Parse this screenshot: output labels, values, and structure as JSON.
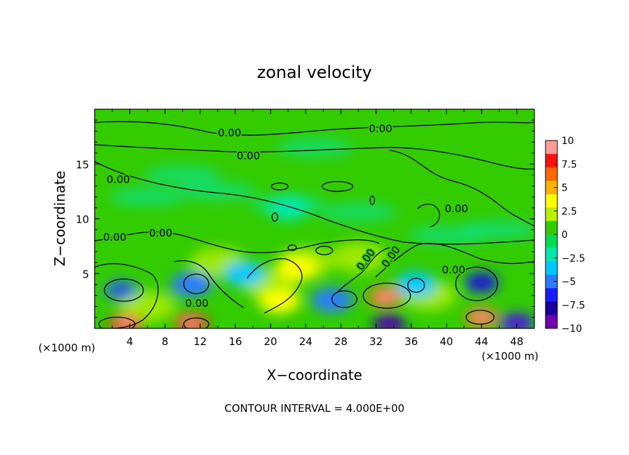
{
  "chart_data": {
    "type": "heatmap",
    "title": "zonal velocity",
    "xlabel": "X−coordinate",
    "ylabel": "Z−coordinate",
    "x_unit_left": "(×1000 m)",
    "x_unit_right": "(×1000 m)",
    "footer": "CONTOUR INTERVAL = 4.000E+00",
    "xlim": [
      0,
      50
    ],
    "ylim": [
      0,
      20
    ],
    "x_ticks": [
      4,
      8,
      12,
      16,
      20,
      24,
      28,
      32,
      36,
      40,
      44,
      48
    ],
    "x_tick_labels": [
      "4",
      "8",
      "12",
      "16",
      "20",
      "24",
      "28",
      "32",
      "36",
      "40",
      "44",
      "48"
    ],
    "y_ticks": [
      5,
      10,
      15
    ],
    "y_tick_labels": [
      "5",
      "10",
      "15"
    ],
    "colorbar": {
      "min": -10,
      "max": 10,
      "ticks": [
        10,
        7.5,
        5,
        2.5,
        0,
        -2.5,
        -5,
        -7.5,
        -10
      ],
      "tick_labels": [
        "10",
        "7.5",
        "5",
        "2.5",
        "0",
        "−2.5",
        "−5",
        "−7.5",
        "−10"
      ],
      "colors": [
        "#ff9a9a",
        "#ff1010",
        "#ff6a00",
        "#ffb300",
        "#ffff00",
        "#b8f000",
        "#33cc00",
        "#00dd55",
        "#00e8b0",
        "#00c8ff",
        "#2a7bff",
        "#1a1aff",
        "#1a00a0",
        "#7000b0"
      ]
    },
    "contour_interval": 4.0,
    "contour_labels": [
      "0.00",
      "0.00",
      "0.00",
      "0.00",
      "0.00",
      "0.00",
      "0.00",
      "0.00",
      "0.00",
      "0.00",
      "0.00"
    ],
    "background_value": 0.5,
    "features": [
      {
        "x": 3.5,
        "z": 0.4,
        "u": 8.5
      },
      {
        "x": 11,
        "z": 0.5,
        "u": 7.5
      },
      {
        "x": 33,
        "z": 2.9,
        "u": 7.0
      },
      {
        "x": 44,
        "z": 1.0,
        "u": 6.5
      },
      {
        "x": 3,
        "z": 3.5,
        "u": -5.5
      },
      {
        "x": 11,
        "z": 4.0,
        "u": -5.0
      },
      {
        "x": 17,
        "z": 5.0,
        "u": -3.5
      },
      {
        "x": 27,
        "z": 2.6,
        "u": -5.0
      },
      {
        "x": 33.5,
        "z": 0.4,
        "u": -8.0
      },
      {
        "x": 36.5,
        "z": 4.0,
        "u": -4.0
      },
      {
        "x": 44,
        "z": 4.2,
        "u": -6.0
      },
      {
        "x": 48,
        "z": 0.5,
        "u": -7.0
      },
      {
        "x": 22,
        "z": 11.0,
        "u": -2.0
      },
      {
        "x": 23,
        "z": 5.5,
        "u": 3.0
      },
      {
        "x": 21,
        "z": 2.5,
        "u": 3.5
      }
    ]
  }
}
